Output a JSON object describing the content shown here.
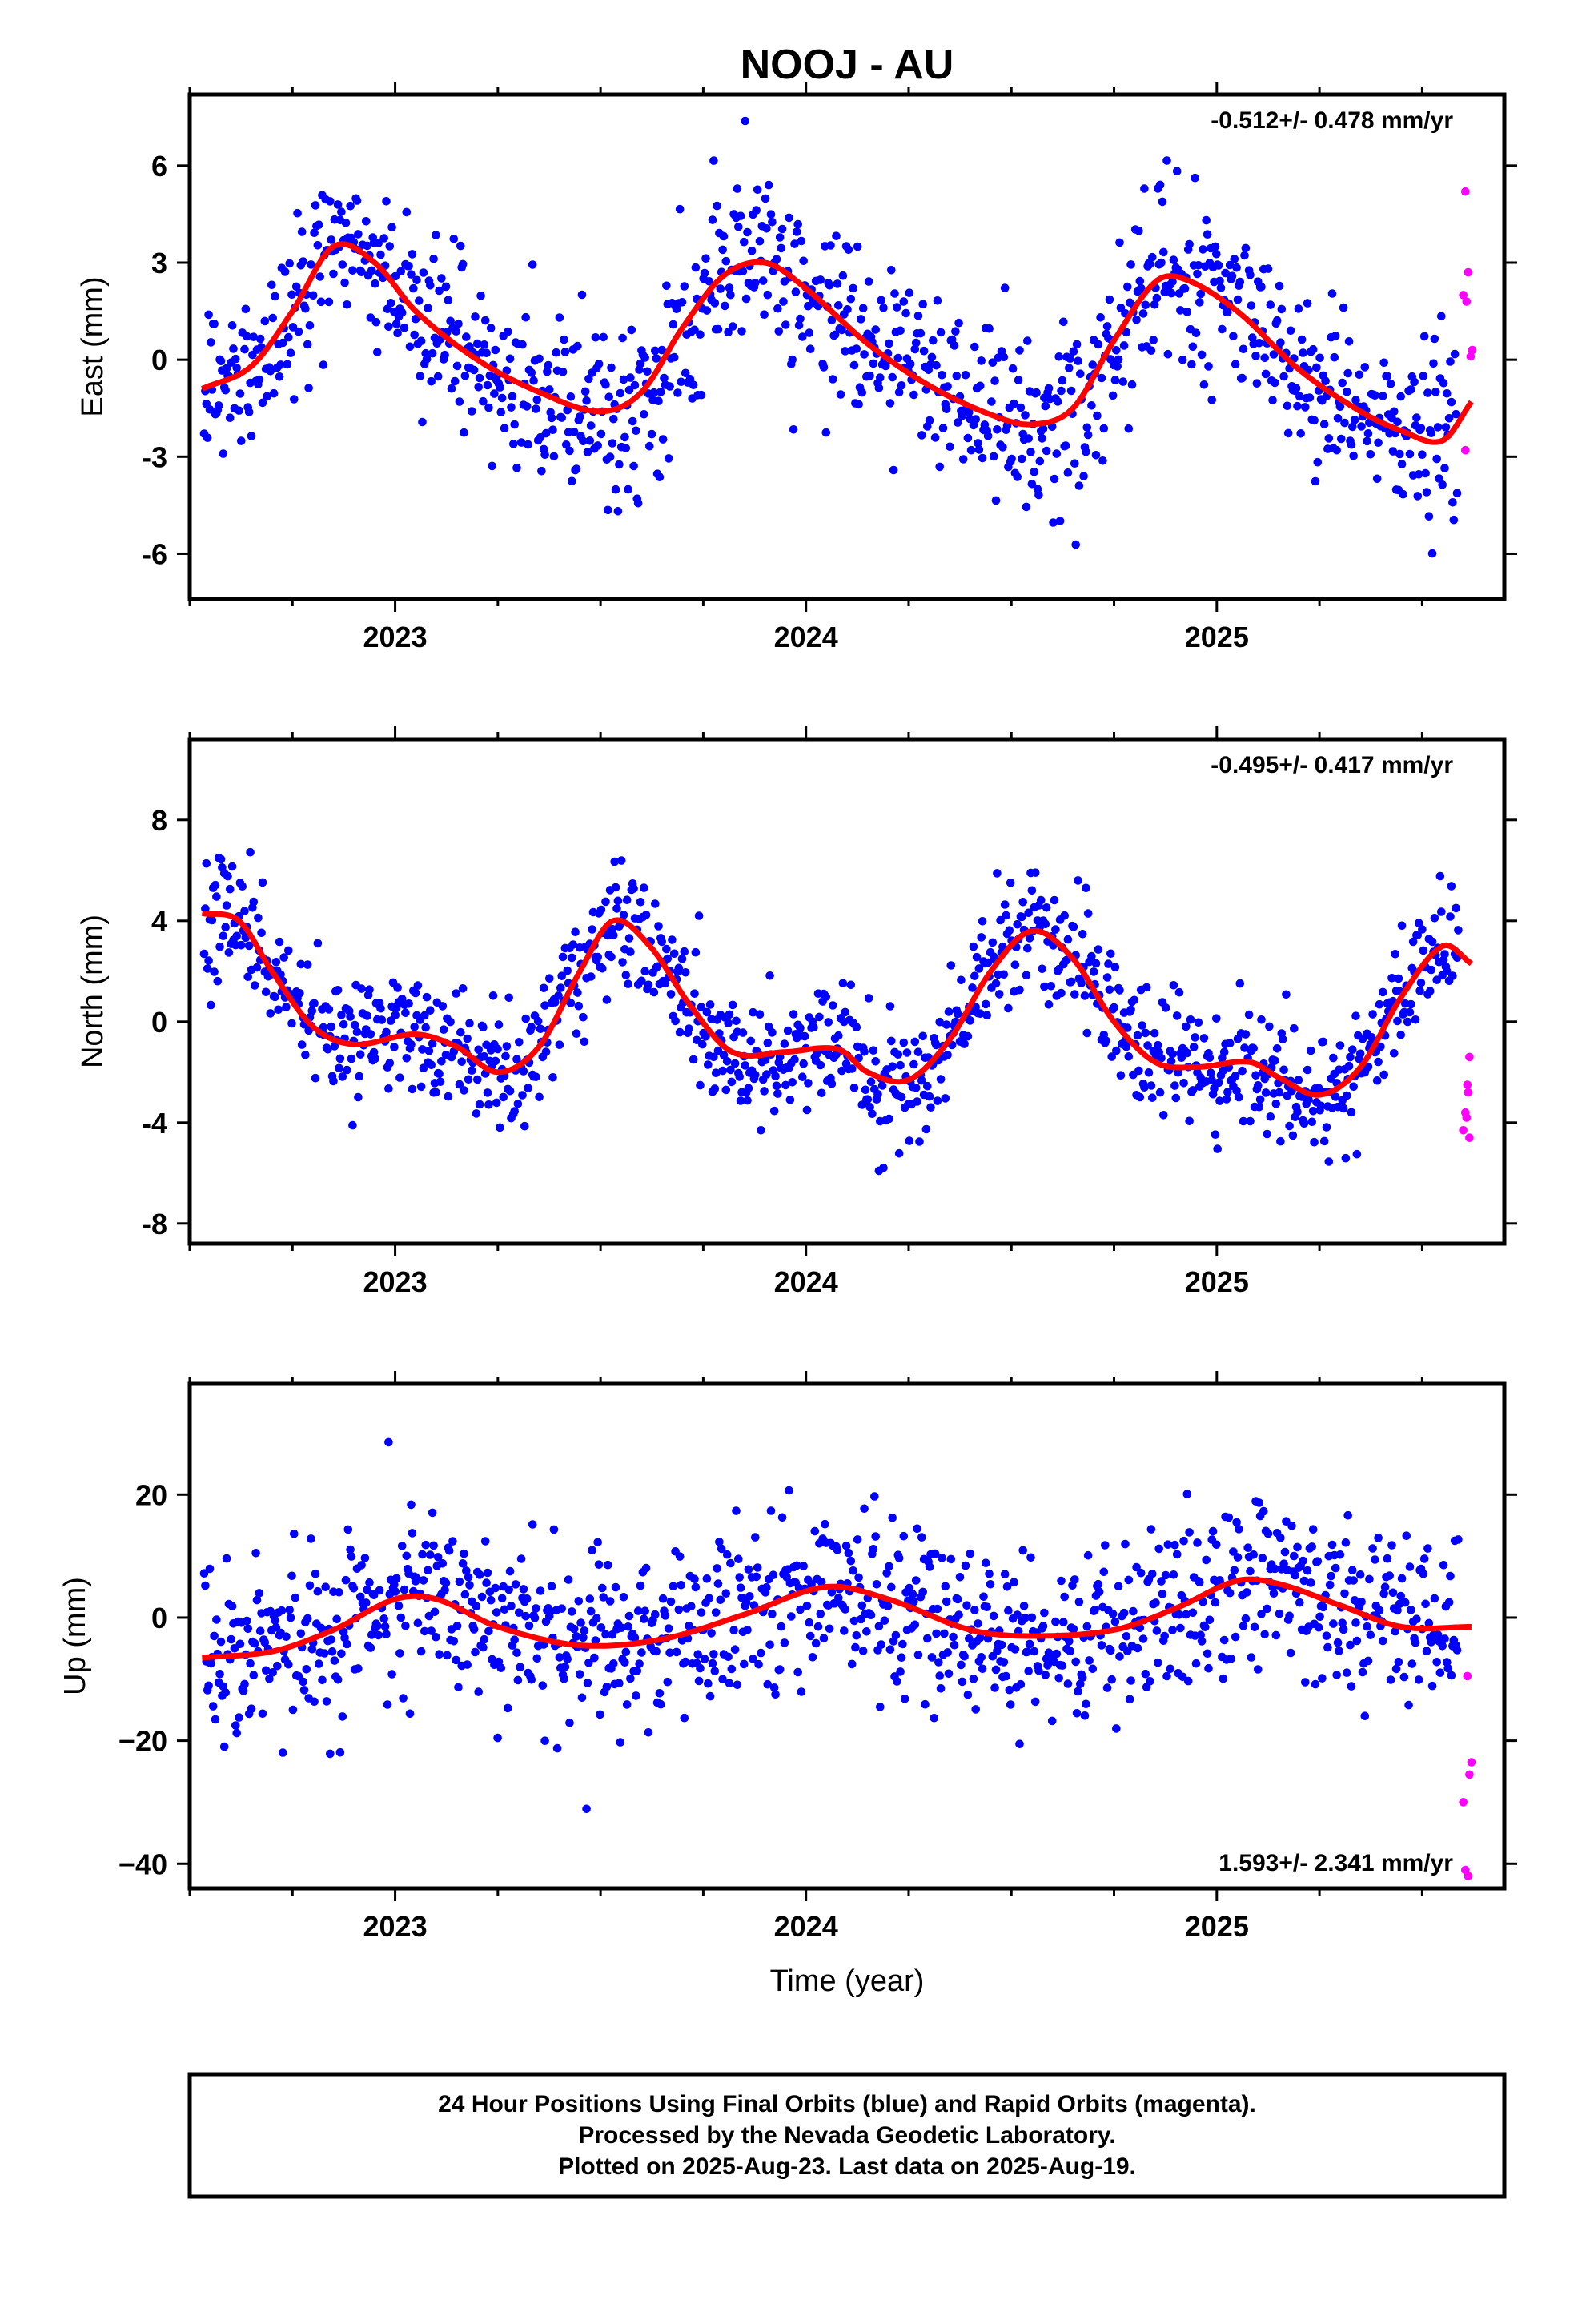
{
  "title": "NOOJ - AU",
  "xlabel": "Time (year)",
  "footer": {
    "line1": "24 Hour Positions Using Final Orbits (blue) and Rapid Orbits (magenta).",
    "line2": "Processed by the Nevada Geodetic Laboratory.",
    "line3": "Plotted on 2025-Aug-23. Last data on 2025-Aug-19."
  },
  "colors": {
    "final": "#0000ff",
    "rapid": "#ff00ff",
    "model": "#ff0000",
    "axis": "#000000"
  },
  "chart_data": [
    {
      "type": "scatter",
      "ylabel": "East (mm)",
      "rate_label": "-0.512+/- 0.478 mm/yr",
      "rate_position": "top-right",
      "xlim": [
        2022.5,
        2025.7
      ],
      "ylim": [
        -7.4,
        8.2
      ],
      "xticks": [
        2023,
        2024,
        2025
      ],
      "xtick_labels": [
        "2023",
        "2024",
        "2025"
      ],
      "yticks": [
        -6,
        -3,
        0,
        3,
        6
      ],
      "ytick_labels": [
        "-6",
        "-3",
        "0",
        "3",
        "6"
      ],
      "model_knots": [
        [
          2022.53,
          -0.9
        ],
        [
          2022.65,
          -0.2
        ],
        [
          2022.75,
          1.5
        ],
        [
          2022.85,
          3.5
        ],
        [
          2022.95,
          3.0
        ],
        [
          2023.05,
          1.5
        ],
        [
          2023.2,
          0.0
        ],
        [
          2023.35,
          -1.0
        ],
        [
          2023.5,
          -1.6
        ],
        [
          2023.6,
          -1.0
        ],
        [
          2023.7,
          1.0
        ],
        [
          2023.8,
          2.6
        ],
        [
          2023.9,
          3.0
        ],
        [
          2024.0,
          2.2
        ],
        [
          2024.15,
          0.5
        ],
        [
          2024.3,
          -0.8
        ],
        [
          2024.45,
          -1.7
        ],
        [
          2024.55,
          -2.0
        ],
        [
          2024.65,
          -1.5
        ],
        [
          2024.75,
          0.6
        ],
        [
          2024.85,
          2.4
        ],
        [
          2024.92,
          2.5
        ],
        [
          2025.05,
          1.5
        ],
        [
          2025.2,
          -0.3
        ],
        [
          2025.35,
          -1.6
        ],
        [
          2025.45,
          -2.2
        ],
        [
          2025.55,
          -2.5
        ],
        [
          2025.62,
          -1.3
        ]
      ],
      "noise_sd": 1.3,
      "rapid_points": [
        [
          2025.605,
          5.2
        ],
        [
          2025.6,
          2.0
        ],
        [
          2025.608,
          1.8
        ],
        [
          2025.612,
          2.7
        ],
        [
          2025.618,
          0.1
        ],
        [
          2025.622,
          0.3
        ],
        [
          2025.605,
          -2.8
        ]
      ]
    },
    {
      "type": "scatter",
      "ylabel": "North (mm)",
      "rate_label": "-0.495+/- 0.417 mm/yr",
      "rate_position": "top-right",
      "xlim": [
        2022.5,
        2025.7
      ],
      "ylim": [
        -8.8,
        11.2
      ],
      "xticks": [
        2023,
        2024,
        2025
      ],
      "xtick_labels": [
        "2023",
        "2024",
        "2025"
      ],
      "yticks": [
        -8,
        -4,
        0,
        4,
        8
      ],
      "ytick_labels": [
        "-8",
        "-4",
        "0",
        "4",
        "8"
      ],
      "model_knots": [
        [
          2022.53,
          4.3
        ],
        [
          2022.62,
          4.0
        ],
        [
          2022.7,
          2.0
        ],
        [
          2022.8,
          -0.2
        ],
        [
          2022.9,
          -0.9
        ],
        [
          2023.05,
          -0.5
        ],
        [
          2023.15,
          -1.0
        ],
        [
          2023.25,
          -2.0
        ],
        [
          2023.35,
          -1.0
        ],
        [
          2023.45,
          2.0
        ],
        [
          2023.53,
          4.0
        ],
        [
          2023.62,
          3.0
        ],
        [
          2023.72,
          0.6
        ],
        [
          2023.82,
          -1.2
        ],
        [
          2023.95,
          -1.2
        ],
        [
          2024.08,
          -1.1
        ],
        [
          2024.15,
          -2.0
        ],
        [
          2024.25,
          -2.3
        ],
        [
          2024.35,
          -0.7
        ],
        [
          2024.45,
          2.0
        ],
        [
          2024.55,
          3.6
        ],
        [
          2024.65,
          2.5
        ],
        [
          2024.75,
          0.0
        ],
        [
          2024.85,
          -1.6
        ],
        [
          2024.95,
          -1.8
        ],
        [
          2025.08,
          -1.6
        ],
        [
          2025.15,
          -2.2
        ],
        [
          2025.25,
          -2.9
        ],
        [
          2025.35,
          -1.8
        ],
        [
          2025.45,
          1.0
        ],
        [
          2025.55,
          3.0
        ],
        [
          2025.62,
          2.3
        ]
      ],
      "noise_sd": 1.2,
      "rapid_points": [
        [
          2025.615,
          -1.4
        ],
        [
          2025.61,
          -2.5
        ],
        [
          2025.612,
          -2.8
        ],
        [
          2025.605,
          -3.6
        ],
        [
          2025.608,
          -3.8
        ],
        [
          2025.6,
          -4.3
        ],
        [
          2025.615,
          -4.6
        ]
      ]
    },
    {
      "type": "scatter",
      "ylabel": "Up (mm)",
      "rate_label": "1.593+/- 2.341 mm/yr",
      "rate_position": "bottom-right",
      "xlim": [
        2022.5,
        2025.7
      ],
      "ylim": [
        -44,
        38
      ],
      "xticks": [
        2023,
        2024,
        2025
      ],
      "xtick_labels": [
        "2023",
        "2024",
        "2025"
      ],
      "yticks": [
        -40,
        -20,
        0,
        20
      ],
      "ytick_labels": [
        "−40",
        "−20",
        "0",
        "20"
      ],
      "model_knots": [
        [
          2022.53,
          -6.5
        ],
        [
          2022.7,
          -5.5
        ],
        [
          2022.85,
          -2.0
        ],
        [
          2023.0,
          3.0
        ],
        [
          2023.1,
          3.0
        ],
        [
          2023.25,
          -1.5
        ],
        [
          2023.45,
          -4.5
        ],
        [
          2023.65,
          -3.5
        ],
        [
          2023.85,
          0.5
        ],
        [
          2024.05,
          5.0
        ],
        [
          2024.2,
          3.0
        ],
        [
          2024.4,
          -2.0
        ],
        [
          2024.55,
          -3.0
        ],
        [
          2024.75,
          -2.0
        ],
        [
          2024.9,
          1.5
        ],
        [
          2025.05,
          6.0
        ],
        [
          2025.15,
          5.5
        ],
        [
          2025.3,
          2.0
        ],
        [
          2025.45,
          -1.5
        ],
        [
          2025.62,
          -1.5
        ]
      ],
      "noise_sd": 7.0,
      "rapid_points": [
        [
          2025.61,
          -9.5
        ],
        [
          2025.62,
          -23.5
        ],
        [
          2025.615,
          -25.5
        ],
        [
          2025.6,
          -30.0
        ],
        [
          2025.605,
          -41.0
        ],
        [
          2025.612,
          -42.0
        ]
      ]
    }
  ]
}
